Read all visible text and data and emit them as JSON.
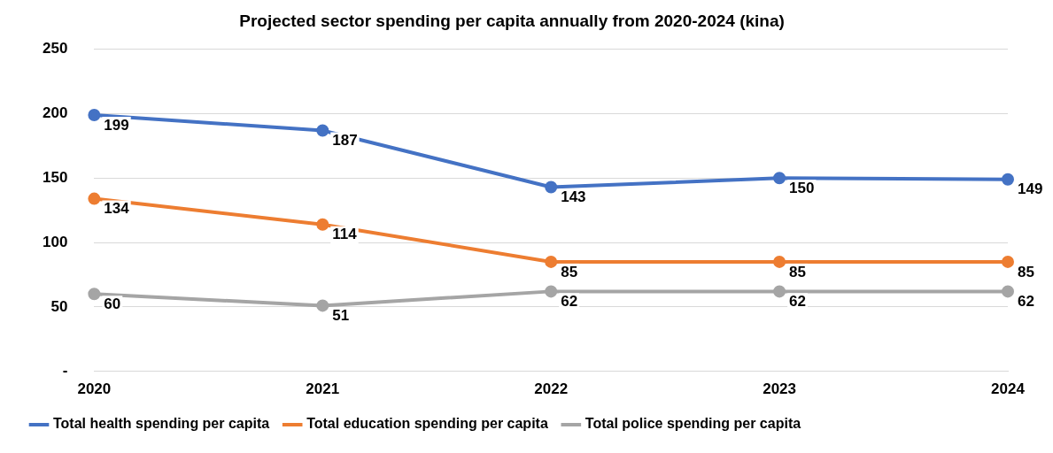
{
  "chart_data": {
    "type": "line",
    "title": "Projected sector spending per capita annually from 2020-2024 (kina)",
    "categories": [
      "2020",
      "2021",
      "2022",
      "2023",
      "2024"
    ],
    "series": [
      {
        "name": "Total health spending per capita",
        "color": "#4472c4",
        "values": [
          199,
          187,
          143,
          150,
          149
        ]
      },
      {
        "name": "Total education spending per capita",
        "color": "#ed7d31",
        "values": [
          134,
          114,
          85,
          85,
          85
        ]
      },
      {
        "name": "Total police spending per capita",
        "color": "#a5a5a5",
        "values": [
          60,
          51,
          62,
          62,
          62
        ]
      }
    ],
    "ylim": [
      0,
      250
    ],
    "yticks": [
      {
        "value": 0,
        "label": "-"
      },
      50,
      100,
      150,
      200,
      250
    ],
    "grid": "y",
    "legend": "bottom",
    "marker": "circle",
    "line_style": "solid",
    "data_labels": true
  }
}
